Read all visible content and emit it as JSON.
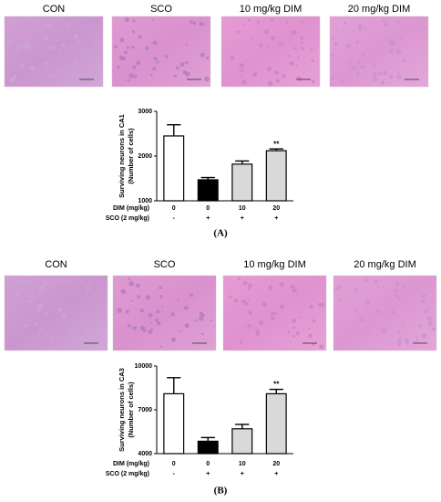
{
  "chart_data": [
    {
      "type": "bar",
      "ylabel": [
        "Surviving neurons in CA1",
        "(Number of cells)"
      ],
      "categories": [
        "CON",
        "SCO",
        "10 mg/kg DIM",
        "20 mg/kg DIM"
      ],
      "values": [
        2450,
        1470,
        1820,
        2120
      ],
      "errors": [
        250,
        50,
        70,
        40
      ],
      "colors": [
        "#ffffff",
        "#000000",
        "#d9d9d9",
        "#d9d9d9"
      ],
      "annotations": [
        null,
        null,
        null,
        "**"
      ],
      "x_rows": [
        {
          "label": "DIM (mg/kg)",
          "values": [
            "0",
            "0",
            "10",
            "20"
          ]
        },
        {
          "label": "SCO (2 mg/kg)",
          "values": [
            "-",
            "+",
            "+",
            "+"
          ]
        }
      ],
      "ylim": [
        1000,
        3000
      ],
      "yticks": [
        1000,
        2000,
        3000
      ]
    },
    {
      "type": "bar",
      "ylabel": [
        "Surviving neurons in CA3",
        "(Number of cells)"
      ],
      "categories": [
        "CON",
        "SCO",
        "10 mg/kg DIM",
        "20 mg/kg DIM"
      ],
      "values": [
        8100,
        4850,
        5700,
        8100
      ],
      "errors": [
        1100,
        250,
        300,
        300
      ],
      "colors": [
        "#ffffff",
        "#000000",
        "#d9d9d9",
        "#d9d9d9"
      ],
      "annotations": [
        null,
        null,
        null,
        "**"
      ],
      "x_rows": [
        {
          "label": "DIM (mg/kg)",
          "values": [
            "0",
            "0",
            "10",
            "20"
          ]
        },
        {
          "label": "SCO (2 mg/kg)",
          "values": [
            "-",
            "+",
            "+",
            "+"
          ]
        }
      ],
      "ylim": [
        4000,
        10000
      ],
      "yticks": [
        4000,
        7000,
        10000
      ]
    }
  ],
  "panels": [
    {
      "image_labels": [
        "CON",
        "SCO",
        "10 mg/kg DIM",
        "20 mg/kg DIM"
      ],
      "panel_label": "(A)"
    },
    {
      "image_labels": [
        "CON",
        "SCO",
        "10 mg/kg DIM",
        "20 mg/kg DIM"
      ],
      "panel_label": "(B)"
    }
  ]
}
